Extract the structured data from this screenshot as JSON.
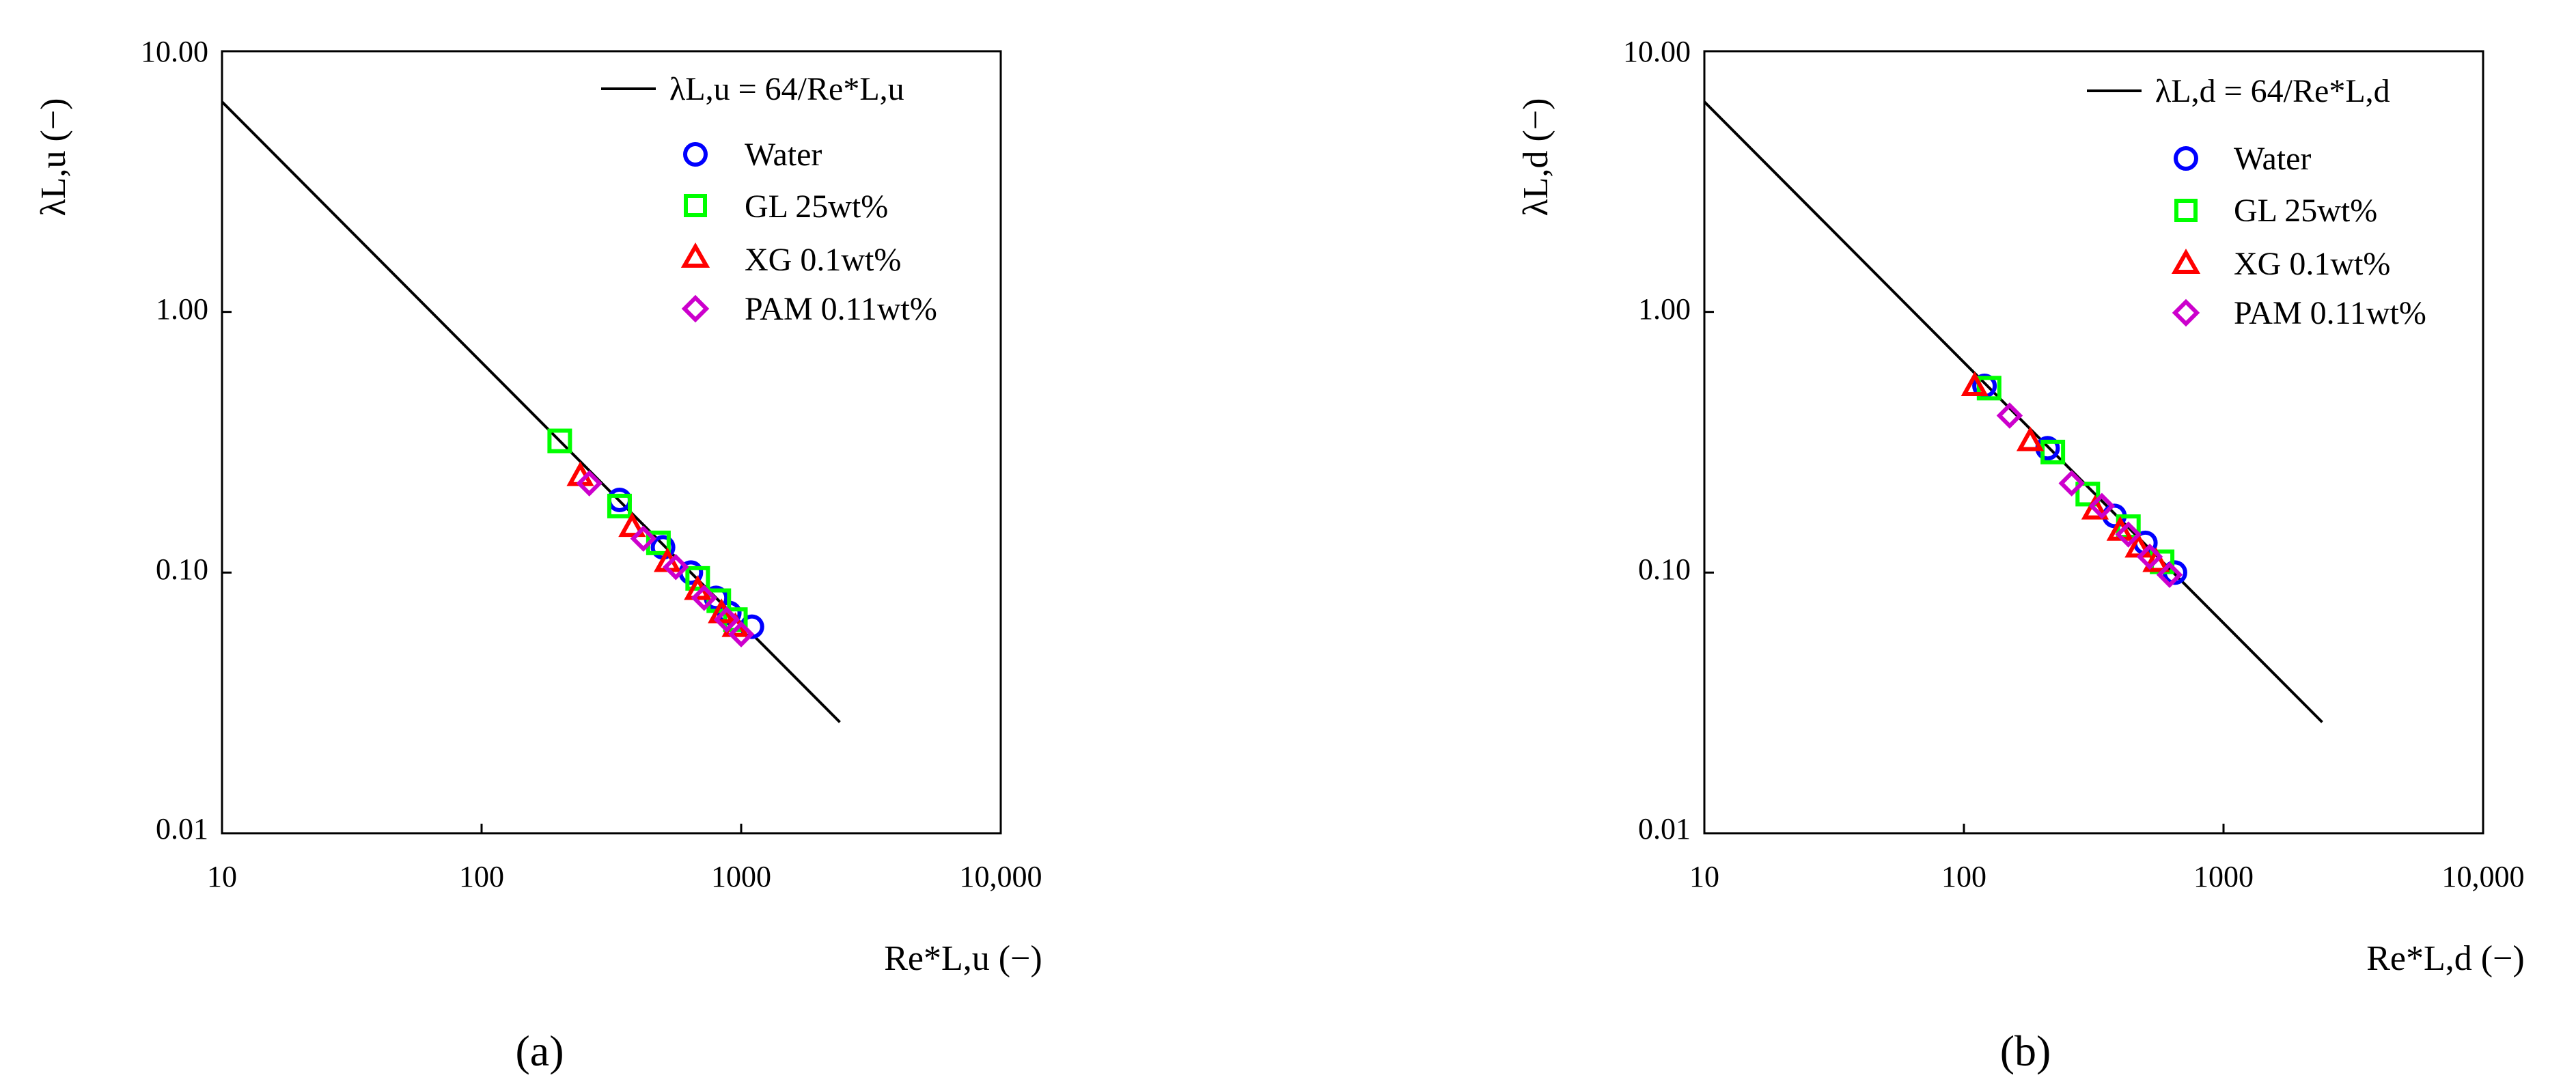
{
  "figure": {
    "panels": [
      {
        "panel_label": "(a)",
        "ylabel": "λL,u (−)",
        "xlabel": "Re*L,u (−)",
        "legend": [
          {
            "name": "λL,u = 64/Re*L,u",
            "marker": "line"
          },
          {
            "name": "Water",
            "marker": "circle",
            "color": "#0000ff"
          },
          {
            "name": "GL 25wt%",
            "marker": "square",
            "color": "#00ff00"
          },
          {
            "name": "XG 0.1wt%",
            "marker": "triangle",
            "color": "#ff0000"
          },
          {
            "name": "PAM 0.11wt%",
            "marker": "diamond",
            "color": "#cc00cc"
          }
        ],
        "xticks": [
          "10",
          "100",
          "1000",
          "10,000"
        ],
        "yticks": [
          "10.00",
          "1.00",
          "0.10",
          "0.01"
        ]
      },
      {
        "panel_label": "(b)",
        "ylabel": "λL,d (−)",
        "xlabel": "Re*L,d (−)",
        "legend": [
          {
            "name": "λL,d = 64/Re*L,d",
            "marker": "line"
          },
          {
            "name": "Water",
            "marker": "circle",
            "color": "#0000ff"
          },
          {
            "name": "GL 25wt%",
            "marker": "square",
            "color": "#00ff00"
          },
          {
            "name": "XG 0.1wt%",
            "marker": "triangle",
            "color": "#ff0000"
          },
          {
            "name": "PAM 0.11wt%",
            "marker": "diamond",
            "color": "#cc00cc"
          }
        ],
        "xticks": [
          "10",
          "100",
          "1000",
          "10,000"
        ],
        "yticks": [
          "10.00",
          "1.00",
          "0.10",
          "0.01"
        ]
      }
    ]
  },
  "chart_data": [
    {
      "type": "scatter",
      "title": "",
      "xlabel": "Re*L,u (−)",
      "ylabel": "λL,u (−)",
      "xscale": "log",
      "yscale": "log",
      "xlim": [
        10,
        10000
      ],
      "ylim": [
        0.01,
        10
      ],
      "grid": false,
      "legend_position": "top-right",
      "line": {
        "name": "λL,u = 64/Re*L,u",
        "x": [
          10,
          2400
        ],
        "y": [
          6.4,
          0.02667
        ]
      },
      "series": [
        {
          "name": "Water",
          "marker": "circle",
          "color": "#0000ff",
          "x": [
            340,
            500,
            640,
            800,
            900,
            1100
          ],
          "y": [
            0.19,
            0.125,
            0.1,
            0.08,
            0.07,
            0.062
          ]
        },
        {
          "name": "GL 25wt%",
          "marker": "square",
          "color": "#00ff00",
          "x": [
            200,
            340,
            480,
            680,
            820,
            950
          ],
          "y": [
            0.32,
            0.18,
            0.13,
            0.095,
            0.078,
            0.066
          ]
        },
        {
          "name": "XG 0.1wt%",
          "marker": "triangle",
          "color": "#ff0000",
          "x": [
            240,
            380,
            520,
            680,
            840,
            950
          ],
          "y": [
            0.235,
            0.15,
            0.11,
            0.086,
            0.07,
            0.062
          ]
        },
        {
          "name": "PAM 0.11wt%",
          "marker": "diamond",
          "color": "#cc00cc",
          "x": [
            260,
            420,
            560,
            720,
            880,
            1000
          ],
          "y": [
            0.22,
            0.135,
            0.105,
            0.08,
            0.066,
            0.058
          ]
        }
      ]
    },
    {
      "type": "scatter",
      "title": "",
      "xlabel": "Re*L,d (−)",
      "ylabel": "λL,d (−)",
      "xscale": "log",
      "yscale": "log",
      "xlim": [
        10,
        10000
      ],
      "ylim": [
        0.01,
        10
      ],
      "grid": false,
      "legend_position": "top-right",
      "line": {
        "name": "λL,d = 64/Re*L,d",
        "x": [
          10,
          2400
        ],
        "y": [
          6.4,
          0.02667
        ]
      },
      "series": [
        {
          "name": "Water",
          "marker": "circle",
          "color": "#0000ff",
          "x": [
            120,
            210,
            380,
            500,
            650
          ],
          "y": [
            0.52,
            0.3,
            0.165,
            0.13,
            0.1
          ]
        },
        {
          "name": "GL 25wt%",
          "marker": "square",
          "color": "#00ff00",
          "x": [
            125,
            220,
            300,
            430,
            580
          ],
          "y": [
            0.51,
            0.29,
            0.2,
            0.15,
            0.11
          ]
        },
        {
          "name": "XG 0.1wt%",
          "marker": "triangle",
          "color": "#ff0000",
          "x": [
            110,
            180,
            320,
            400,
            470,
            550
          ],
          "y": [
            0.52,
            0.32,
            0.175,
            0.145,
            0.125,
            0.11
          ]
        },
        {
          "name": "PAM 0.11wt%",
          "marker": "diamond",
          "color": "#cc00cc",
          "x": [
            150,
            260,
            340,
            430,
            520,
            620
          ],
          "y": [
            0.4,
            0.22,
            0.18,
            0.14,
            0.115,
            0.098
          ]
        }
      ]
    }
  ]
}
